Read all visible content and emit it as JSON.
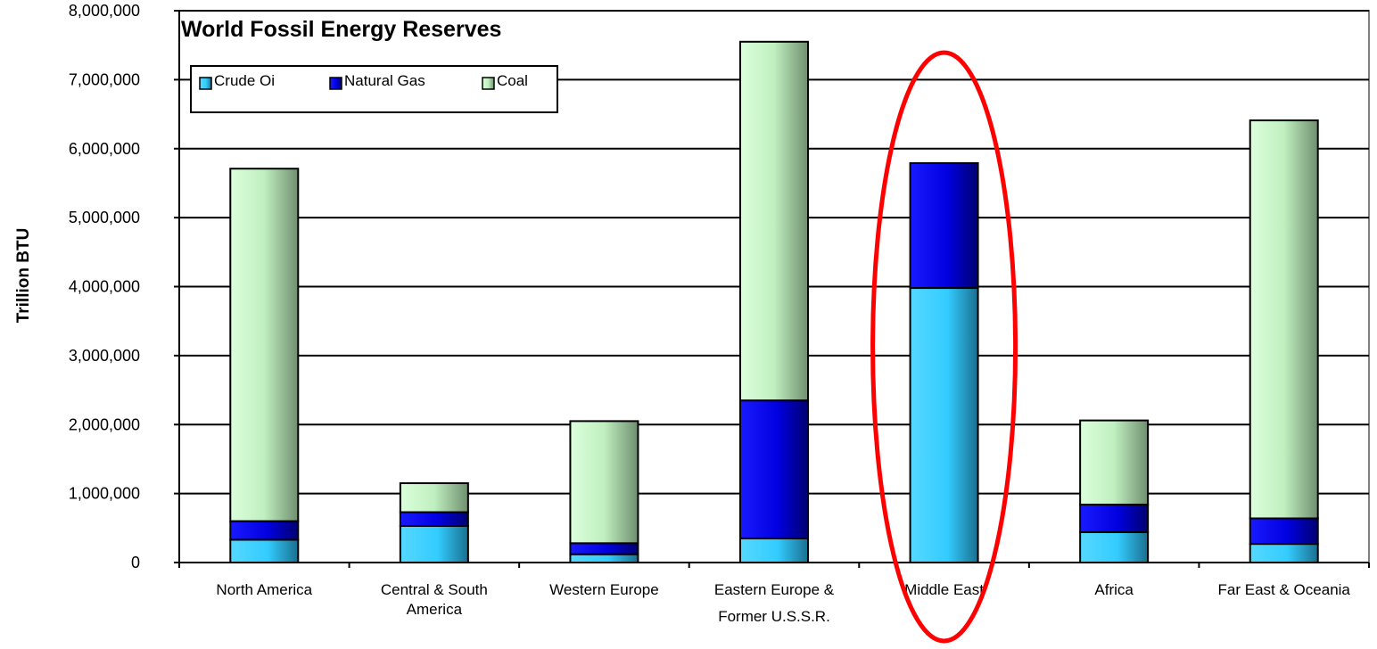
{
  "chart_data": {
    "type": "bar",
    "stacked": true,
    "title": "World Fossil Energy Reserves",
    "xlabel": "",
    "ylabel": "Trillion BTU",
    "ylim": [
      0,
      8000000
    ],
    "y_ticks": [
      "0",
      "1,000,000",
      "2,000,000",
      "3,000,000",
      "4,000,000",
      "5,000,000",
      "6,000,000",
      "7,000,000",
      "8,000,000"
    ],
    "grid": true,
    "legend_position": "top-left",
    "categories": [
      [
        "North America"
      ],
      [
        "Central & South",
        "America"
      ],
      [
        "Western Europe"
      ],
      [
        "Eastern Europe &",
        "Former U.S.S.R."
      ],
      [
        "Middle East"
      ],
      [
        "Africa"
      ],
      [
        "Far East & Oceania"
      ]
    ],
    "series": [
      {
        "name": "Crude Oi",
        "color": "#33ccff",
        "values": [
          330000,
          530000,
          120000,
          350000,
          3980000,
          440000,
          270000
        ]
      },
      {
        "name": "Natural Gas",
        "color": "#0000e0",
        "values": [
          270000,
          200000,
          160000,
          2000000,
          1810000,
          400000,
          370000
        ]
      },
      {
        "name": "Coal",
        "color": "#c8f5c8",
        "values": [
          5110000,
          420000,
          1770000,
          5200000,
          0,
          1220000,
          5770000
        ]
      }
    ],
    "annotation": {
      "shape": "ellipse",
      "color": "#ff0000",
      "category": "Middle East"
    }
  }
}
